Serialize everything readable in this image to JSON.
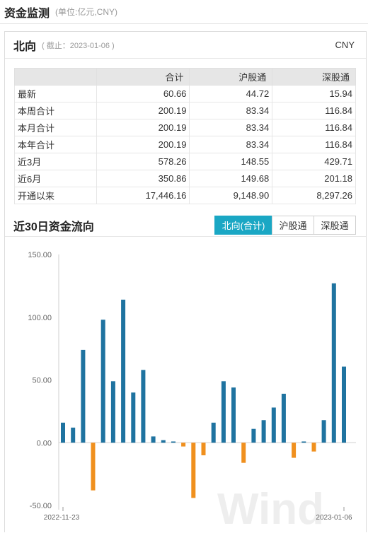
{
  "page": {
    "title": "资金监测",
    "unit": "(单位:亿元,CNY)"
  },
  "north": {
    "title": "北向",
    "date": "( 截止：2023-01-06 )",
    "currency": "CNY"
  },
  "table": {
    "headers": [
      "",
      "合计",
      "沪股通",
      "深股通"
    ],
    "rows": [
      [
        "最新",
        "60.66",
        "44.72",
        "15.94"
      ],
      [
        "本周合计",
        "200.19",
        "83.34",
        "116.84"
      ],
      [
        "本月合计",
        "200.19",
        "83.34",
        "116.84"
      ],
      [
        "本年合计",
        "200.19",
        "83.34",
        "116.84"
      ],
      [
        "近3月",
        "578.26",
        "148.55",
        "429.71"
      ],
      [
        "近6月",
        "350.86",
        "149.68",
        "201.18"
      ],
      [
        "开通以来",
        "17,446.16",
        "9,148.90",
        "8,297.26"
      ]
    ]
  },
  "flow": {
    "title": "近30日资金流向",
    "tabs": [
      {
        "label": "北向(合计)",
        "active": true
      },
      {
        "label": "沪股通",
        "active": false
      },
      {
        "label": "深股通",
        "active": false
      }
    ]
  },
  "watermark": "Wind",
  "colors": {
    "positive": "#1f73a0",
    "negative": "#f0901e",
    "accent": "#1aa7c4"
  },
  "chart_data": {
    "type": "bar",
    "title": "",
    "y_ticks": [
      "150.00",
      "100.00",
      "50.00",
      "0.00",
      "-50.00"
    ],
    "ylim": [
      -50,
      150
    ],
    "x_labels": [
      "2022-11-23",
      "2023-01-06"
    ],
    "values": [
      16,
      12,
      74,
      -38,
      98,
      49,
      114,
      40,
      58,
      5,
      2,
      1,
      -3,
      -44,
      -10,
      16,
      49,
      44,
      -16,
      11,
      18,
      28,
      39,
      -12,
      1,
      -7,
      18,
      127,
      60.66
    ]
  }
}
